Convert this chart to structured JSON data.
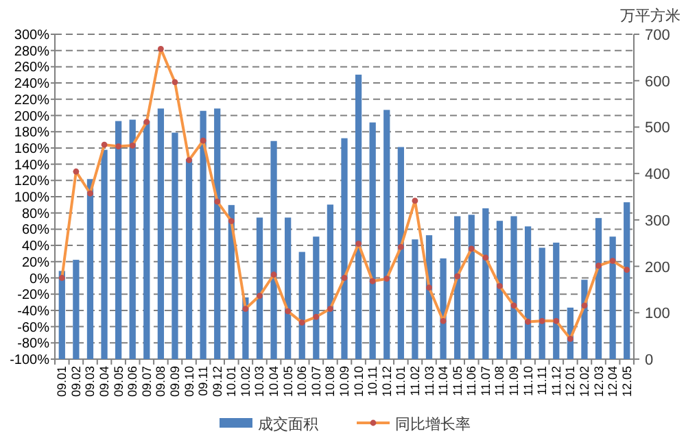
{
  "chart_data": {
    "type": "bar",
    "y2label": "万平方米",
    "categories": [
      "09.01",
      "09.02",
      "09.03",
      "09.04",
      "09.05",
      "09.06",
      "09.07",
      "09.08",
      "09.09",
      "09.10",
      "09.11",
      "09.12",
      "10.01",
      "10.02",
      "10.03",
      "10.04",
      "10.05",
      "10.06",
      "10.07",
      "10.08",
      "10.09",
      "10.10",
      "10.11",
      "10.12",
      "11.01",
      "11.02",
      "11.03",
      "11.04",
      "11.05",
      "11.06",
      "11.07",
      "11.08",
      "11.09",
      "11.10",
      "11.11",
      "11.12",
      "12.01",
      "12.02",
      "12.03",
      "12.04",
      "12.05"
    ],
    "series": [
      {
        "name": "成交面积",
        "axis": "y2",
        "color": "#4f81bd",
        "values": [
          190,
          214,
          388,
          451,
          513,
          516,
          513,
          540,
          488,
          431,
          535,
          540,
          332,
          133,
          305,
          470,
          305,
          231,
          264,
          333,
          476,
          613,
          510,
          537,
          457,
          258,
          267,
          217,
          308,
          311,
          325,
          298,
          308,
          286,
          240,
          251,
          111,
          171,
          304,
          264,
          338
        ]
      },
      {
        "name": "同比增长率",
        "type": "line",
        "axis": "y",
        "color": "#f79646",
        "values": [
          0,
          131,
          104,
          164,
          162,
          163,
          192,
          282,
          241,
          145,
          169,
          94,
          70,
          -38,
          -22,
          4,
          -41,
          -55,
          -48,
          -38,
          0,
          42,
          -4,
          -1,
          38,
          95,
          -12,
          -53,
          2,
          36,
          25,
          -10,
          -34,
          -54,
          -53,
          -53,
          -75,
          -34,
          15,
          21,
          10
        ]
      }
    ],
    "marker": "circle",
    "grid": "y",
    "legend": "bottom",
    "ylim": [
      -100,
      300
    ],
    "yticks": [
      {
        "value": -100,
        "label": "-100%"
      },
      {
        "value": -80,
        "label": "-80%"
      },
      {
        "value": -60,
        "label": "-60%"
      },
      {
        "value": -40,
        "label": "-40%"
      },
      {
        "value": -20,
        "label": "-20%"
      },
      {
        "value": 0,
        "label": "0%"
      },
      {
        "value": 20,
        "label": "20%"
      },
      {
        "value": 40,
        "label": "40%"
      },
      {
        "value": 60,
        "label": "60%"
      },
      {
        "value": 80,
        "label": "80%"
      },
      {
        "value": 100,
        "label": "100%"
      },
      {
        "value": 120,
        "label": "120%"
      },
      {
        "value": 140,
        "label": "140%"
      },
      {
        "value": 160,
        "label": "160%"
      },
      {
        "value": 180,
        "label": "180%"
      },
      {
        "value": 200,
        "label": "200%"
      },
      {
        "value": 220,
        "label": "220%"
      },
      {
        "value": 240,
        "label": "240%"
      },
      {
        "value": 260,
        "label": "260%"
      },
      {
        "value": 280,
        "label": "280%"
      },
      {
        "value": 300,
        "label": "300%"
      }
    ],
    "y2lim": [
      0,
      700
    ],
    "y2ticks": [
      0,
      100,
      200,
      300,
      400,
      500,
      600,
      700
    ]
  }
}
